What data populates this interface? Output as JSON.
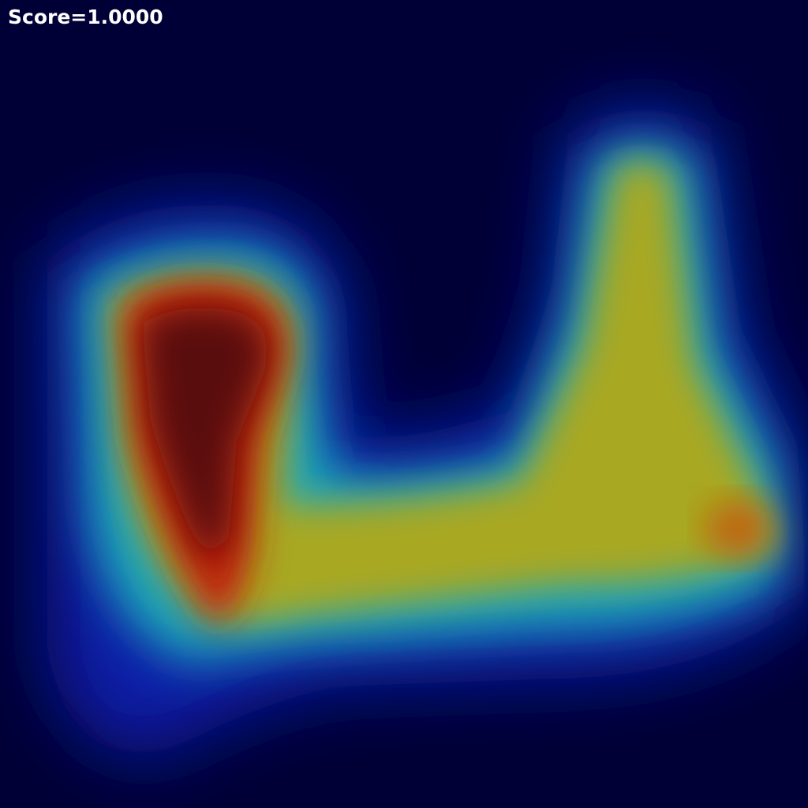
{
  "overlay": {
    "label": "Score=1.0000"
  }
}
